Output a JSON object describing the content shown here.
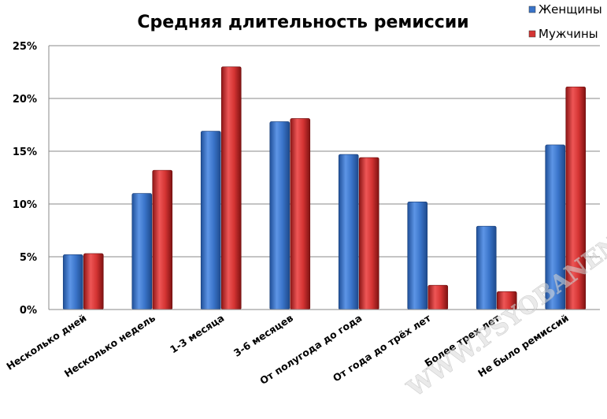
{
  "chart_data": {
    "type": "bar",
    "title": "Средняя длительность ремиссии",
    "categories": [
      "Несколько дней",
      "Несколько недель",
      "1-3 месяца",
      "3-6 месяцев",
      "От полугода до года",
      "От года до трёх лет",
      "Более трех лет",
      "Не было ремиссий"
    ],
    "series": [
      {
        "name": "Женщины",
        "values": [
          5.2,
          11.0,
          16.9,
          17.8,
          14.7,
          10.2,
          7.9,
          15.6
        ]
      },
      {
        "name": "Мужчины",
        "values": [
          5.3,
          13.2,
          23.0,
          18.1,
          14.4,
          2.3,
          1.7,
          21.1
        ]
      }
    ],
    "yticks": [
      "25%",
      "20%",
      "15%",
      "10%",
      "5%",
      "0%"
    ],
    "ylim": [
      0,
      25
    ],
    "grid": true,
    "legend": "top-right",
    "colors": {
      "Женщины": "#3a74c9",
      "Мужчины": "#d43433"
    },
    "watermark": "WWW.PSYOBANEN.ORG"
  }
}
